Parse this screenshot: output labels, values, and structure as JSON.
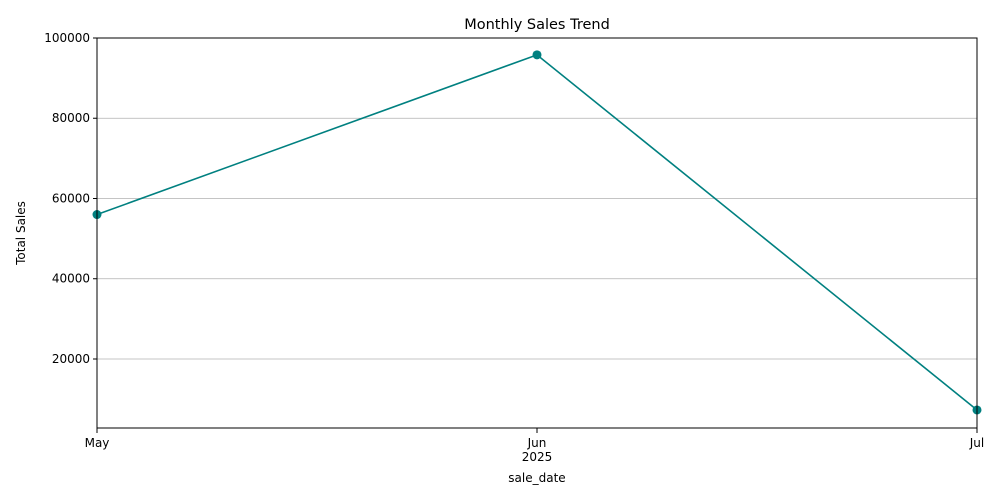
{
  "chart_data": {
    "type": "line",
    "title": "Monthly Sales Trend",
    "xlabel": "sale_date",
    "ylabel": "Total Sales",
    "x": [
      "2025-05",
      "2025-06",
      "2025-07"
    ],
    "x_tick_labels": [
      "May",
      "Jun",
      "Jul"
    ],
    "x_year_label": "2025",
    "series": [
      {
        "values": [
          56000,
          95800,
          7300
        ],
        "color": "#008080",
        "marker": "circle"
      }
    ],
    "ylim": [
      2800,
      100000
    ],
    "y_ticks": [
      20000,
      40000,
      60000,
      80000,
      100000
    ],
    "grid": "y-major",
    "legend": "none"
  }
}
